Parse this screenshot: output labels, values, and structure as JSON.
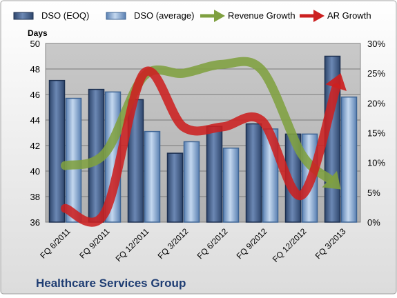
{
  "chart_data": {
    "type": "bar",
    "title": "Healthcare Services Group",
    "ylabel": "Days",
    "categories": [
      "FQ 6/2011",
      "FQ 9/2011",
      "FQ 12/2011",
      "FQ 3/2012",
      "FQ 6/2012",
      "FQ 9/2012",
      "FQ 12/2012",
      "FQ 3/2013"
    ],
    "ylim": [
      36,
      50
    ],
    "y_ticks": [
      "36",
      "38",
      "40",
      "42",
      "44",
      "46",
      "48",
      "50"
    ],
    "y2lim": [
      0,
      30
    ],
    "y2_ticks": [
      "0%",
      "5%",
      "10%",
      "15%",
      "20%",
      "25%",
      "30%"
    ],
    "legend_position": "top",
    "series": [
      {
        "name": "DSO (EOQ)",
        "type": "bar",
        "axis": "left",
        "color": "#4a6590",
        "values": [
          47.1,
          46.4,
          45.6,
          41.4,
          43.5,
          43.7,
          42.9,
          49.0
        ]
      },
      {
        "name": "DSO (average)",
        "type": "bar",
        "axis": "left",
        "color": "#8fb0d6",
        "values": [
          45.7,
          46.2,
          43.1,
          42.3,
          41.8,
          43.3,
          42.9,
          45.8
        ]
      },
      {
        "name": "Revenue Growth",
        "type": "line-arrow",
        "axis": "right",
        "color": "#7fa040",
        "values": [
          9.5,
          11.5,
          24.5,
          25.0,
          26.5,
          25.5,
          11.5,
          5.5
        ]
      },
      {
        "name": "AR Growth",
        "type": "line-arrow",
        "axis": "right",
        "color": "#cc2020",
        "values": [
          2.3,
          1.5,
          25.0,
          16.0,
          16.0,
          17.0,
          4.5,
          25.0
        ]
      }
    ]
  }
}
